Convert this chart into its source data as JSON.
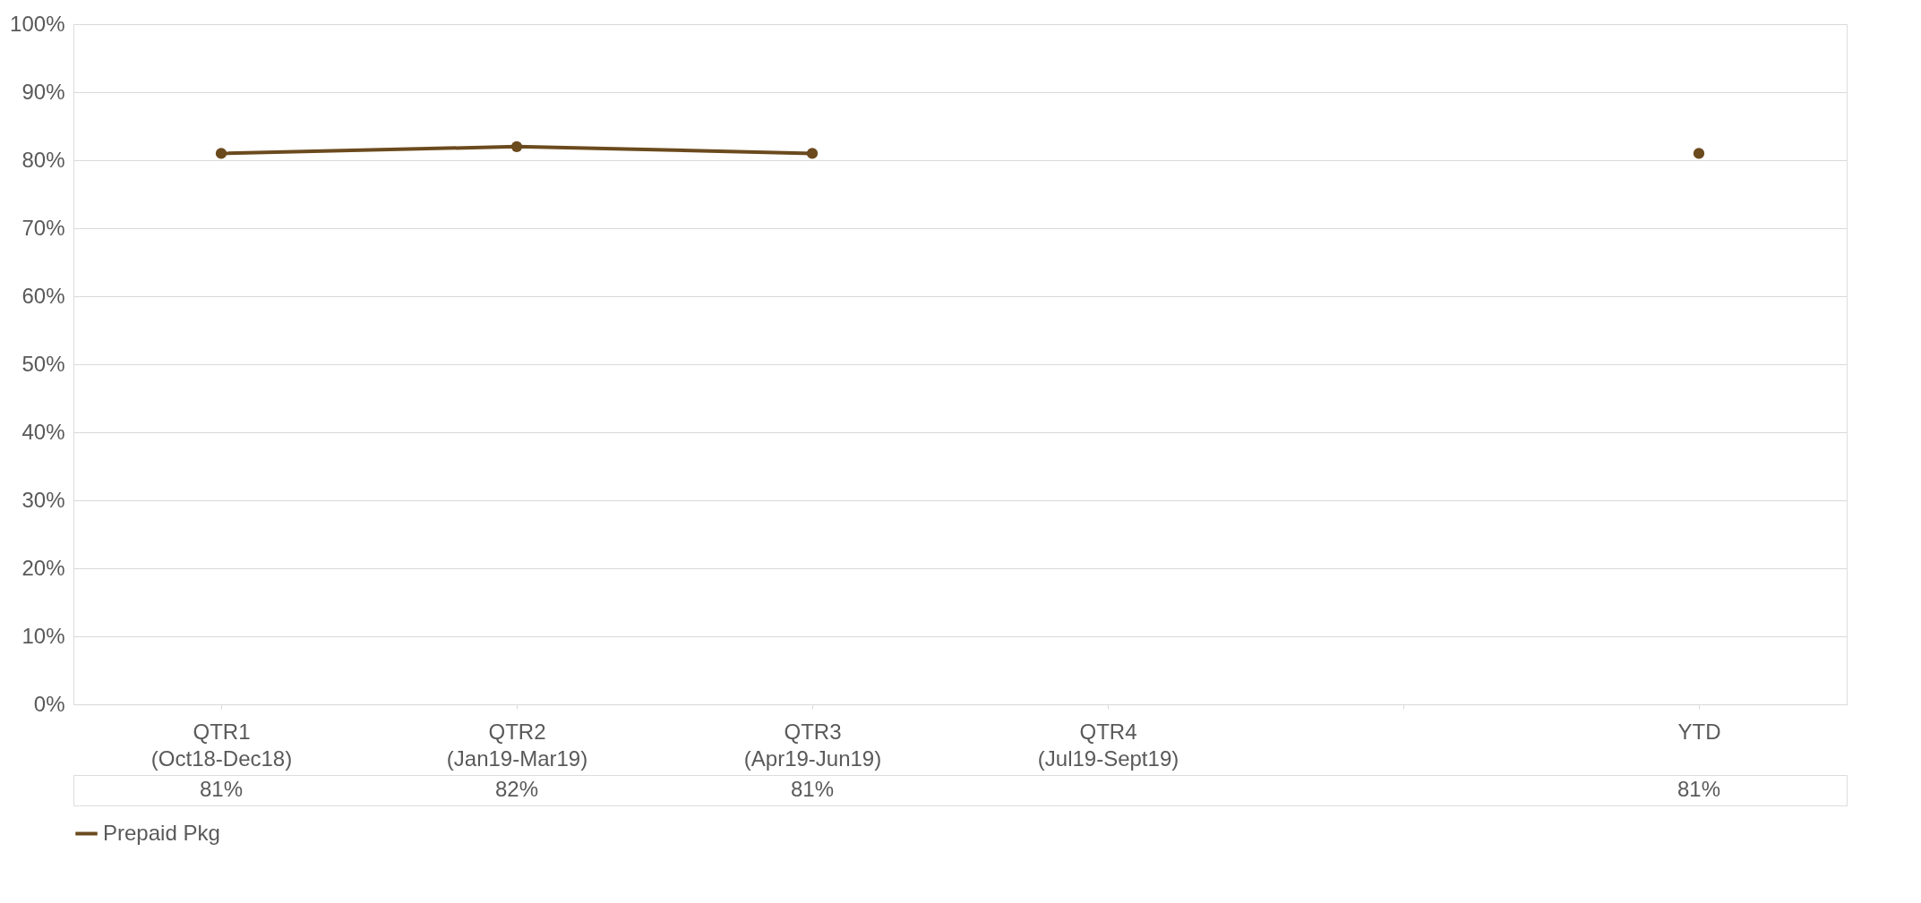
{
  "chart_data": {
    "type": "line",
    "categories": [
      "QTR1 (Oct18-Dec18)",
      "QTR2 (Jan19-Mar19)",
      "QTR3 (Apr19-Jun19)",
      "QTR4 (Jul19-Sept19)",
      null,
      "YTD"
    ],
    "series": [
      {
        "name": "Prepaid Pkg",
        "color": "#6b4a1e",
        "values": [
          81,
          82,
          81,
          null,
          null,
          81
        ],
        "value_labels": [
          "81%",
          "82%",
          "81%",
          null,
          null,
          "81%"
        ]
      }
    ],
    "ylim": [
      0,
      100
    ],
    "yticks": [
      {
        "value": 0,
        "label": "0%"
      },
      {
        "value": 10,
        "label": "10%"
      },
      {
        "value": 20,
        "label": "20%"
      },
      {
        "value": 30,
        "label": "30%"
      },
      {
        "value": 40,
        "label": "40%"
      },
      {
        "value": 50,
        "label": "50%"
      },
      {
        "value": 60,
        "label": "60%"
      },
      {
        "value": 70,
        "label": "70%"
      },
      {
        "value": 80,
        "label": "80%"
      },
      {
        "value": 90,
        "label": "90%"
      },
      {
        "value": 100,
        "label": "100%"
      }
    ],
    "grid": "y",
    "marker": "circle",
    "line_style": "solid",
    "legend": "bottom left"
  }
}
